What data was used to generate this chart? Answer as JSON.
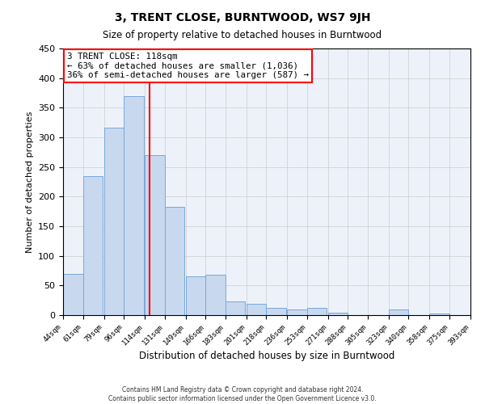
{
  "title": "3, TRENT CLOSE, BURNTWOOD, WS7 9JH",
  "subtitle": "Size of property relative to detached houses in Burntwood",
  "xlabel": "Distribution of detached houses by size in Burntwood",
  "ylabel": "Number of detached properties",
  "bar_left_edges": [
    44,
    61,
    79,
    96,
    114,
    131,
    149,
    166,
    183,
    201,
    218,
    236,
    253,
    271,
    288,
    305,
    323,
    340,
    358,
    375
  ],
  "bar_heights": [
    70,
    235,
    317,
    370,
    270,
    183,
    65,
    68,
    23,
    19,
    12,
    10,
    12,
    4,
    0,
    0,
    10,
    0,
    3,
    0
  ],
  "bin_width": 17,
  "last_edge": 393,
  "bar_facecolor": "#c8d8ef",
  "bar_edgecolor": "#7aa8d8",
  "vline_x": 118,
  "vline_color": "red",
  "annotation_title": "3 TRENT CLOSE: 118sqm",
  "annotation_line1": "← 63% of detached houses are smaller (1,036)",
  "annotation_line2": "36% of semi-detached houses are larger (587) →",
  "annotation_box_color": "white",
  "annotation_box_edgecolor": "red",
  "tick_labels": [
    "44sqm",
    "61sqm",
    "79sqm",
    "96sqm",
    "114sqm",
    "131sqm",
    "149sqm",
    "166sqm",
    "183sqm",
    "201sqm",
    "218sqm",
    "236sqm",
    "253sqm",
    "271sqm",
    "288sqm",
    "305sqm",
    "323sqm",
    "340sqm",
    "358sqm",
    "375sqm",
    "393sqm"
  ],
  "ylim": [
    0,
    450
  ],
  "yticks": [
    0,
    50,
    100,
    150,
    200,
    250,
    300,
    350,
    400,
    450
  ],
  "grid_color": "#cccccc",
  "bg_color": "#edf2fa",
  "footer_line1": "Contains HM Land Registry data © Crown copyright and database right 2024.",
  "footer_line2": "Contains public sector information licensed under the Open Government Licence v3.0."
}
